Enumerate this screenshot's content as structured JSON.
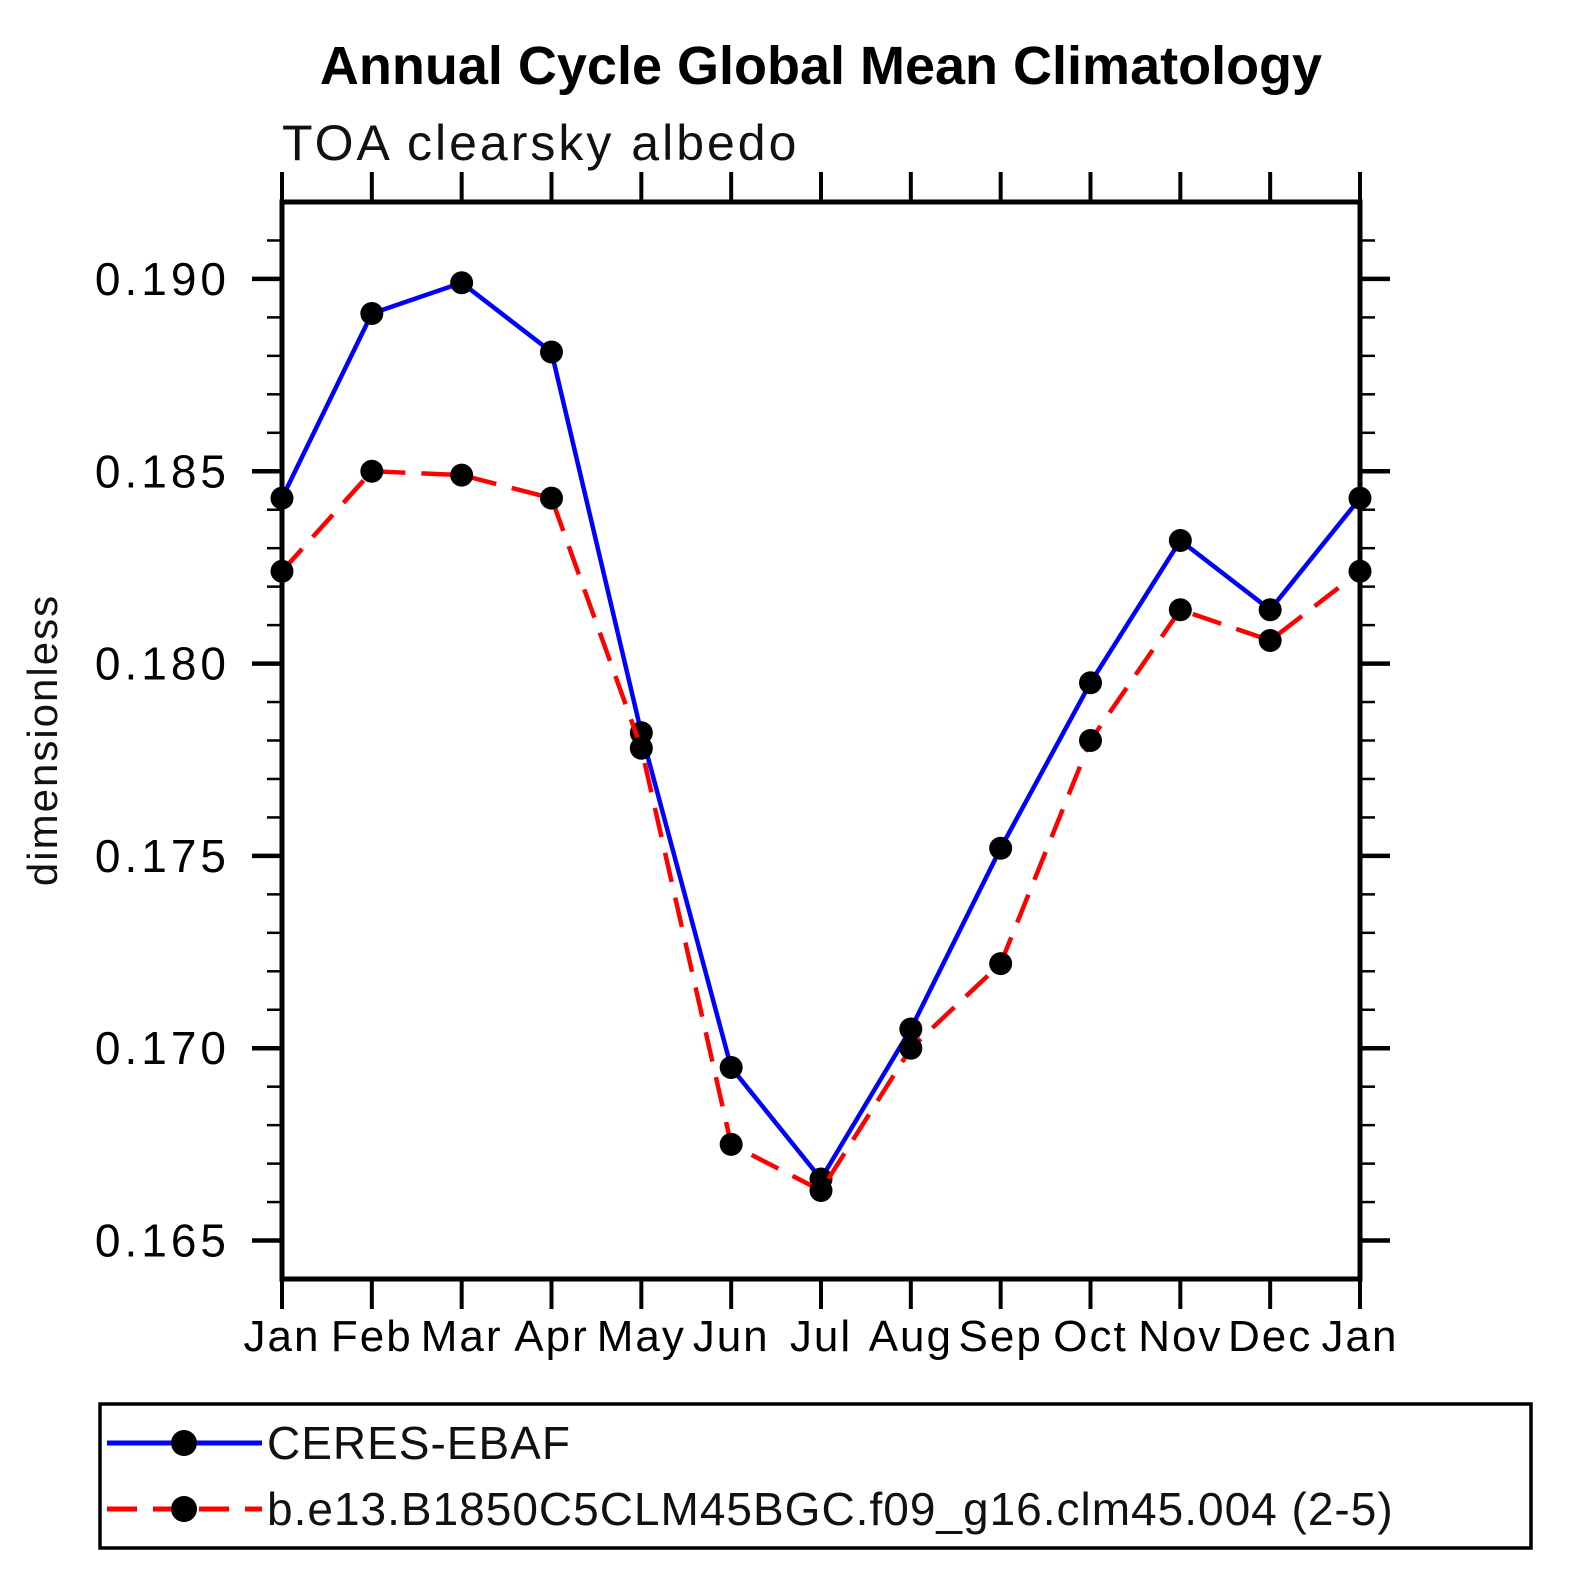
{
  "page": {
    "background": "#ffffff",
    "text_color": "#000000"
  },
  "chart_data": {
    "type": "line",
    "title": "Annual Cycle Global Mean Climatology",
    "subtitle": "TOA clearsky albedo",
    "xlabel": "",
    "ylabel": "dimensionless",
    "categories": [
      "Jan",
      "Feb",
      "Mar",
      "Apr",
      "May",
      "Jun",
      "Jul",
      "Aug",
      "Sep",
      "Oct",
      "Nov",
      "Dec",
      "Jan"
    ],
    "ylim": [
      0.164,
      0.192
    ],
    "ytick_labels": [
      "0.165",
      "0.170",
      "0.175",
      "0.180",
      "0.185",
      "0.190"
    ],
    "ytick_major_interval": 0.005,
    "ytick_minor_interval": 0.001,
    "grid": false,
    "legend_position": "bottom",
    "frame_color": "#000000",
    "marker_color": "#000000",
    "series": [
      {
        "name": "CERES-EBAF",
        "color": "#0000ff",
        "line_style": "solid",
        "marker": "circle",
        "values": [
          0.1843,
          0.1891,
          0.1899,
          0.1881,
          0.1782,
          0.1695,
          0.1666,
          0.1705,
          0.1752,
          0.1795,
          0.1832,
          0.1814,
          0.1843
        ]
      },
      {
        "name": "b.e13.B1850C5CLM45BGC.f09_g16.clm45.004 (2-5)",
        "color": "#ff0000",
        "line_style": "dashed",
        "marker": "circle",
        "values": [
          0.1824,
          0.185,
          0.1849,
          0.1843,
          0.1778,
          0.1675,
          0.1663,
          0.17,
          0.1722,
          0.178,
          0.1814,
          0.1806,
          0.1824
        ]
      }
    ]
  }
}
